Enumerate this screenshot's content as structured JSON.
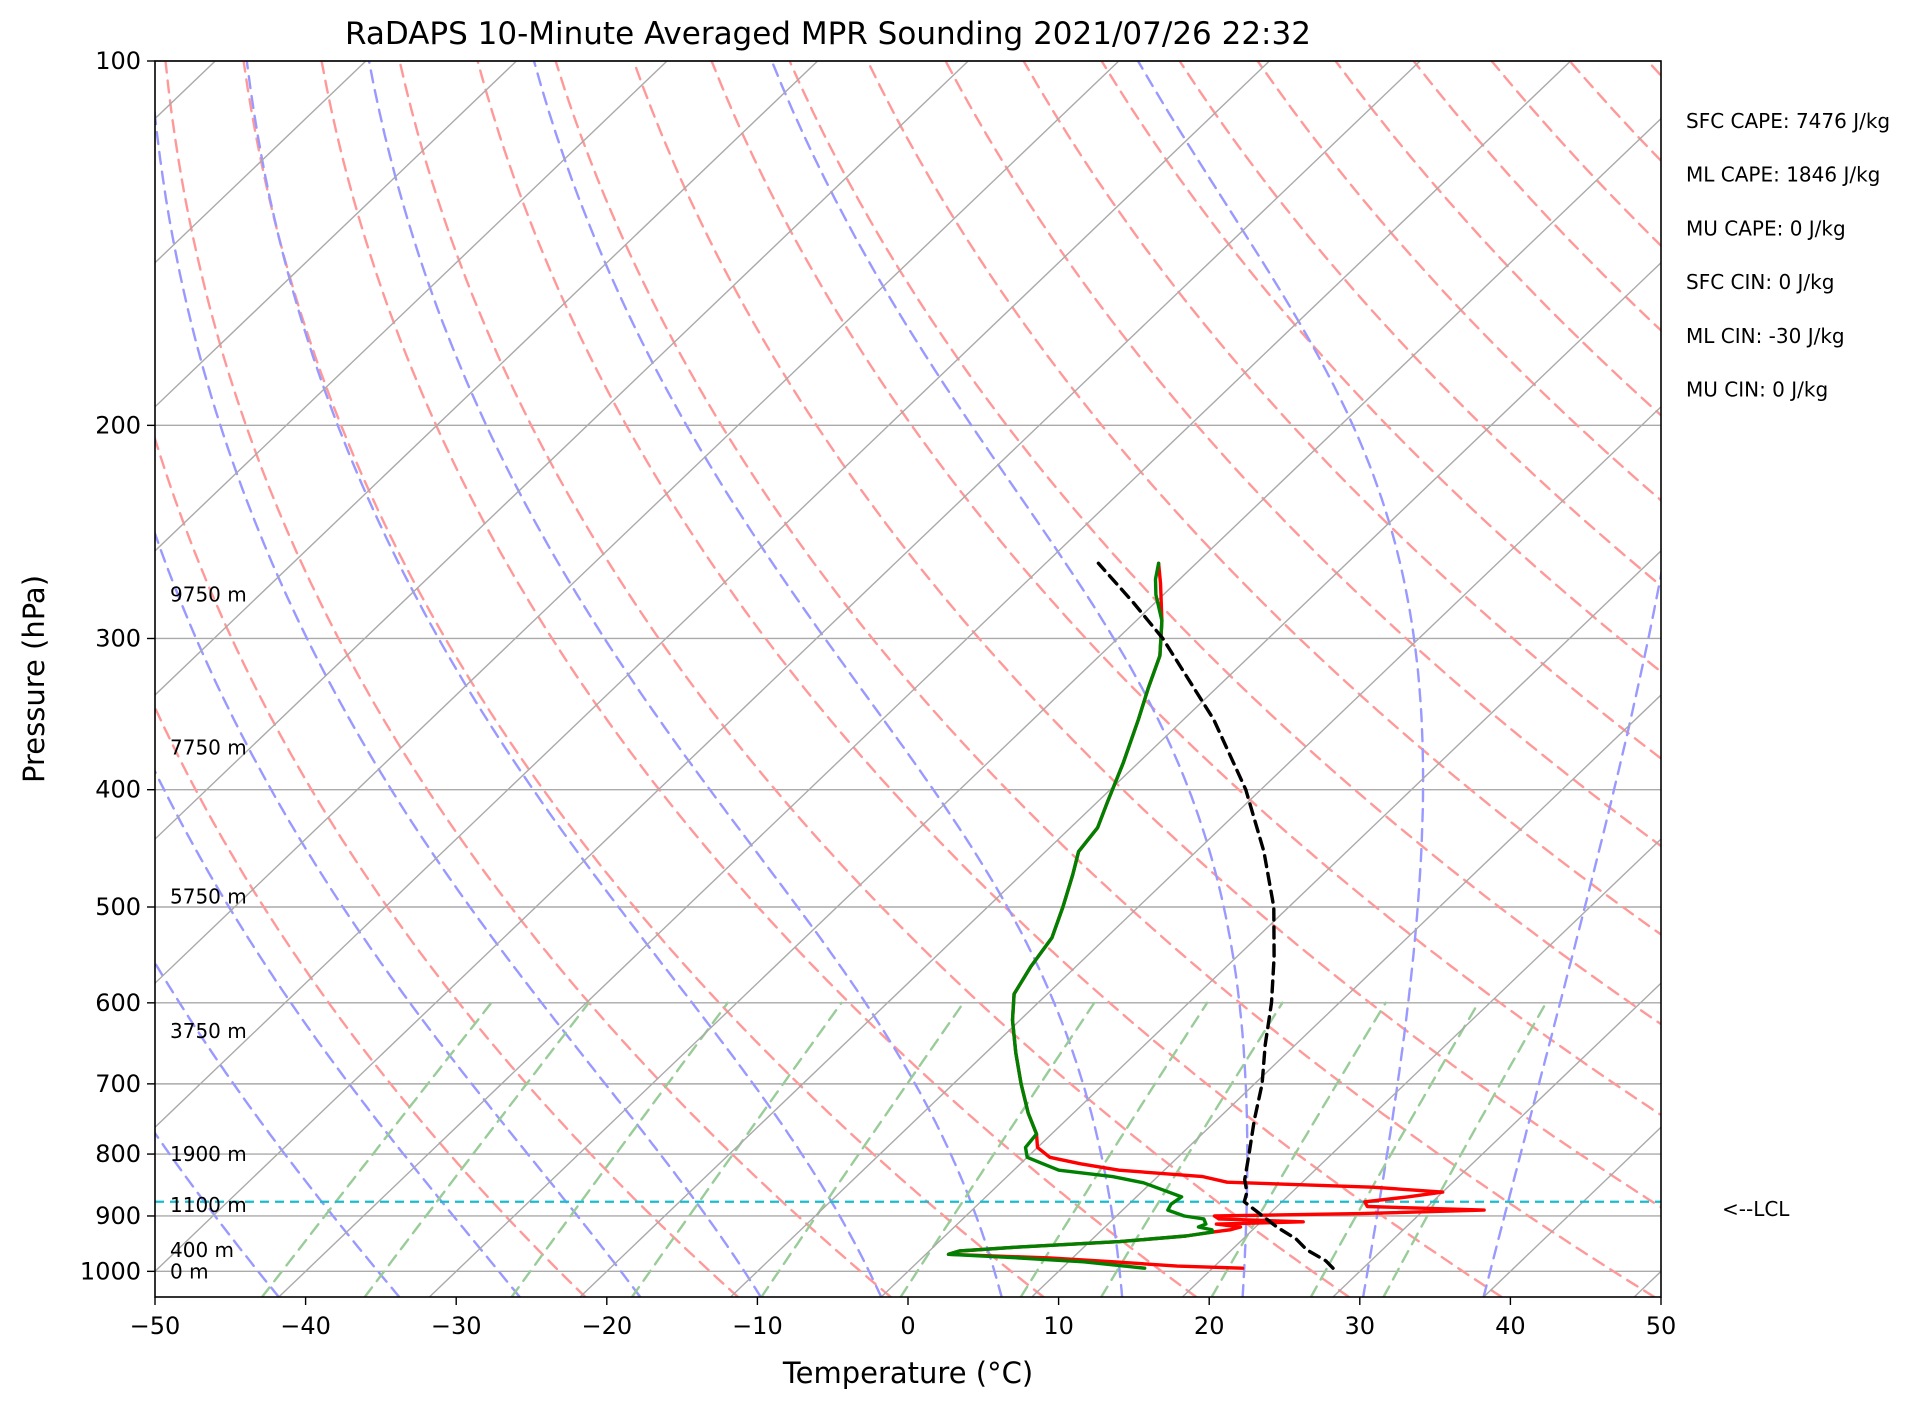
{
  "chart_data": {
    "type": "line",
    "title": "RaDAPS 10-Minute Averaged MPR Sounding 2021/07/26 22:32",
    "xlabel": "Temperature (°C)",
    "ylabel": "Pressure (hPa)",
    "xlim": [
      -50,
      50
    ],
    "ylim": [
      1050,
      100
    ],
    "y_scale": "log",
    "x_ticks": [
      "−50",
      "−40",
      "−30",
      "−20",
      "−10",
      "0",
      "10",
      "20",
      "30",
      "40",
      "50"
    ],
    "y_ticks": [
      "100",
      "200",
      "300",
      "400",
      "500",
      "600",
      "700",
      "800",
      "900",
      "1000"
    ],
    "skew_deg_per_decade": 84,
    "colors": {
      "temperature": "#ff0000",
      "dewpoint": "#008000",
      "parcel": "#000000",
      "lcl": "#17becf",
      "isotherm": "#aaaaaa",
      "dry_adiabat": "#ff9999",
      "moist_adiabat": "#9999ff",
      "mixing_ratio": "#99cc99"
    },
    "height_labels": [
      {
        "label": "9750 m",
        "p": 276
      },
      {
        "label": "7750 m",
        "p": 369
      },
      {
        "label": "5750 m",
        "p": 490
      },
      {
        "label": "3750 m",
        "p": 633
      },
      {
        "label": "1900 m",
        "p": 800
      },
      {
        "label": "1100 m",
        "p": 881
      },
      {
        "label": "400 m",
        "p": 960
      },
      {
        "label": "0 m",
        "p": 1000
      }
    ],
    "lcl": {
      "p": 876,
      "label": "<--LCL"
    },
    "indices": [
      "SFC CAPE: 7476 J/kg",
      "ML CAPE: 1846 J/kg",
      "MU CAPE: 0 J/kg",
      "SFC CIN: 0 J/kg",
      "ML CIN: -30 J/kg",
      "MU CIN: 0 J/kg"
    ],
    "series": [
      {
        "id": "temperature",
        "points": [
          [
            994,
            22.0
          ],
          [
            990,
            17.5
          ],
          [
            982,
            13.0
          ],
          [
            975,
            8.5
          ],
          [
            968,
            1.5
          ],
          [
            962,
            2.0
          ],
          [
            955,
            5.5
          ],
          [
            945,
            12.0
          ],
          [
            935,
            16.0
          ],
          [
            928,
            17.5
          ],
          [
            924,
            18.5
          ],
          [
            919,
            19.0
          ],
          [
            914,
            17.2
          ],
          [
            910,
            22.8
          ],
          [
            905,
            17.0
          ],
          [
            900,
            16.5
          ],
          [
            896,
            26.0
          ],
          [
            890,
            34.0
          ],
          [
            884,
            26.0
          ],
          [
            876,
            25.5
          ],
          [
            868,
            28.0
          ],
          [
            860,
            30.0
          ],
          [
            852,
            25.0
          ],
          [
            844,
            15.0
          ],
          [
            835,
            13.0
          ],
          [
            825,
            7.0
          ],
          [
            815,
            4.0
          ],
          [
            805,
            1.5
          ],
          [
            790,
            0.0
          ],
          [
            770,
            -1.0
          ],
          [
            740,
            -3.0
          ],
          [
            700,
            -5.5
          ],
          [
            660,
            -8.0
          ],
          [
            620,
            -10.5
          ],
          [
            590,
            -12.2
          ],
          [
            560,
            -13.0
          ],
          [
            530,
            -13.6
          ],
          [
            500,
            -15.0
          ],
          [
            470,
            -16.6
          ],
          [
            450,
            -17.8
          ],
          [
            430,
            -18.2
          ],
          [
            410,
            -19.3
          ],
          [
            380,
            -21.0
          ],
          [
            350,
            -23.0
          ],
          [
            330,
            -24.5
          ],
          [
            310,
            -26.0
          ],
          [
            290,
            -28.3
          ],
          [
            270,
            -31.0
          ],
          [
            260,
            -32.5
          ]
        ]
      },
      {
        "id": "dewpoint",
        "points": [
          [
            994,
            15.5
          ],
          [
            990,
            14.0
          ],
          [
            982,
            11.0
          ],
          [
            975,
            6.5
          ],
          [
            968,
            1.5
          ],
          [
            962,
            2.0
          ],
          [
            955,
            5.5
          ],
          [
            945,
            12.0
          ],
          [
            935,
            16.0
          ],
          [
            928,
            17.5
          ],
          [
            924,
            17.3
          ],
          [
            919,
            16.2
          ],
          [
            914,
            16.5
          ],
          [
            905,
            16.0
          ],
          [
            900,
            14.5
          ],
          [
            890,
            13.0
          ],
          [
            880,
            12.8
          ],
          [
            868,
            13.0
          ],
          [
            858,
            11.5
          ],
          [
            845,
            9.5
          ],
          [
            835,
            7.0
          ],
          [
            825,
            3.0
          ],
          [
            815,
            1.5
          ],
          [
            805,
            0.0
          ],
          [
            790,
            -0.8
          ],
          [
            770,
            -1.0
          ],
          [
            740,
            -3.0
          ],
          [
            700,
            -5.5
          ],
          [
            660,
            -8.0
          ],
          [
            620,
            -10.5
          ],
          [
            590,
            -12.2
          ],
          [
            560,
            -13.0
          ],
          [
            530,
            -13.6
          ],
          [
            500,
            -15.0
          ],
          [
            470,
            -16.6
          ],
          [
            450,
            -17.8
          ],
          [
            430,
            -18.2
          ],
          [
            410,
            -19.3
          ],
          [
            380,
            -21.0
          ],
          [
            350,
            -23.0
          ],
          [
            330,
            -24.5
          ],
          [
            310,
            -26.0
          ],
          [
            290,
            -28.3
          ],
          [
            276,
            -30.5
          ],
          [
            268,
            -31.6
          ],
          [
            260,
            -32.5
          ]
        ]
      },
      {
        "id": "parcel",
        "points": [
          [
            994,
            28.0
          ],
          [
            980,
            27.0
          ],
          [
            960,
            25.0
          ],
          [
            940,
            23.5
          ],
          [
            920,
            21.5
          ],
          [
            900,
            19.7
          ],
          [
            876,
            17.5
          ],
          [
            860,
            17.0
          ],
          [
            840,
            16.0
          ],
          [
            800,
            14.5
          ],
          [
            750,
            12.5
          ],
          [
            700,
            10.5
          ],
          [
            650,
            8.0
          ],
          [
            600,
            5.5
          ],
          [
            550,
            2.5
          ],
          [
            500,
            -1.0
          ],
          [
            450,
            -5.5
          ],
          [
            400,
            -11.0
          ],
          [
            350,
            -18.0
          ],
          [
            300,
            -27.0
          ],
          [
            280,
            -31.5
          ],
          [
            260,
            -36.5
          ]
        ]
      }
    ]
  }
}
